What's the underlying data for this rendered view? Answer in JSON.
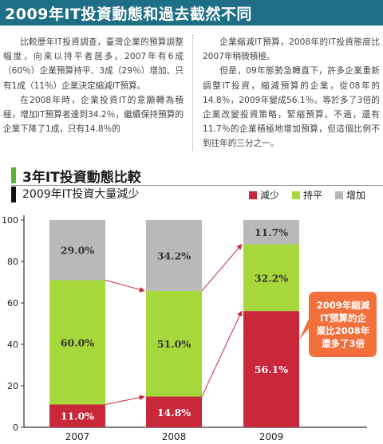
{
  "banner": {
    "title": "2009年IT投資動態和過去截然不同"
  },
  "article": {
    "left_paragraphs": [
      "比較歷年IT投資調查，臺灣企業的預算調整幅度，向來以持平者居多。2007年有6成（60％）企業預算持平、3成（29％）增加、只有1成（11％）企業決定縮減IT預算。",
      "在2008年時，企業投資IT的意願轉為積極，增加IT預算者達到34.2％，繼續保持預算的企業下降了1成，只有14.8％的"
    ],
    "right_paragraphs": [
      "企業縮減IT預算，2008年的IT投資態度比2007年稍微積極。",
      "但是，09年態勢急轉直下，許多企業重新調整IT投資，縮減預算的企業，從08年的14.8％，2009年變成56.1％。等於多了3倍的企業改變投資策略，緊縮預算。不過，還有11.7％的企業積極地增加預算，但這個比例不到往年的三分之一。"
    ]
  },
  "chart_header": {
    "title": "3年IT投資動態比較",
    "subtitle": "2009年IT投資大量減少"
  },
  "colors": {
    "decrease": "#c8283a",
    "flat": "#a7d83b",
    "increase": "#b9b9b9",
    "accent": "#f36f3c"
  },
  "chart_data": {
    "type": "bar",
    "stacked": true,
    "categories": [
      "2007",
      "2008",
      "2009"
    ],
    "series": [
      {
        "name": "減少",
        "values": [
          11.0,
          14.8,
          56.1
        ],
        "labels": [
          "11.0%",
          "14.8%",
          "56.1%"
        ]
      },
      {
        "name": "持平",
        "values": [
          60.0,
          51.0,
          32.2
        ],
        "labels": [
          "60.0%",
          "51.0%",
          "32.2%"
        ]
      },
      {
        "name": "增加",
        "values": [
          29.0,
          34.2,
          11.7
        ],
        "labels": [
          "29.0%",
          "34.2%",
          "11.7%"
        ]
      }
    ],
    "ylim": [
      0,
      100
    ],
    "yticks": [
      "0",
      "20",
      "40",
      "60",
      "80",
      "100"
    ],
    "legend_position": "top-right",
    "grid": false,
    "annotation": [
      "2009年縮減",
      "IT預算的企",
      "業比2008年",
      "還多了3倍"
    ]
  }
}
